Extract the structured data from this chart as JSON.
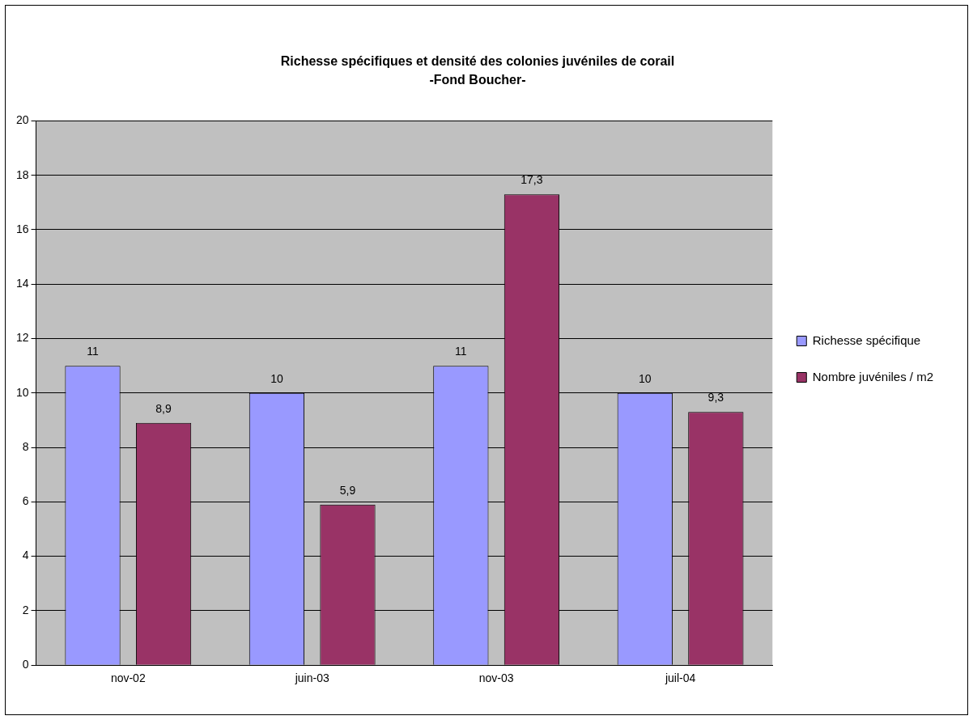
{
  "chart_data": {
    "type": "bar",
    "title": "Richesse spécifiques et densité des colonies juvéniles de corail",
    "subtitle": "-Fond Boucher-",
    "categories": [
      "nov-02",
      "juin-03",
      "nov-03",
      "juil-04"
    ],
    "series": [
      {
        "name": "Richesse spécifique",
        "color": "#9999ff",
        "values": [
          11,
          10,
          11,
          10
        ],
        "value_labels": [
          "11",
          "10",
          "11",
          "10"
        ]
      },
      {
        "name": "Nombre juvéniles / m2",
        "color": "#993366",
        "values": [
          8.9,
          5.9,
          17.3,
          9.3
        ],
        "value_labels": [
          "8,9",
          "5,9",
          "17,3",
          "9,3"
        ]
      }
    ],
    "ylim": [
      0,
      20
    ],
    "yticks": [
      0,
      2,
      4,
      6,
      8,
      10,
      12,
      14,
      16,
      18,
      20
    ],
    "grid": "y",
    "legend": "right"
  }
}
